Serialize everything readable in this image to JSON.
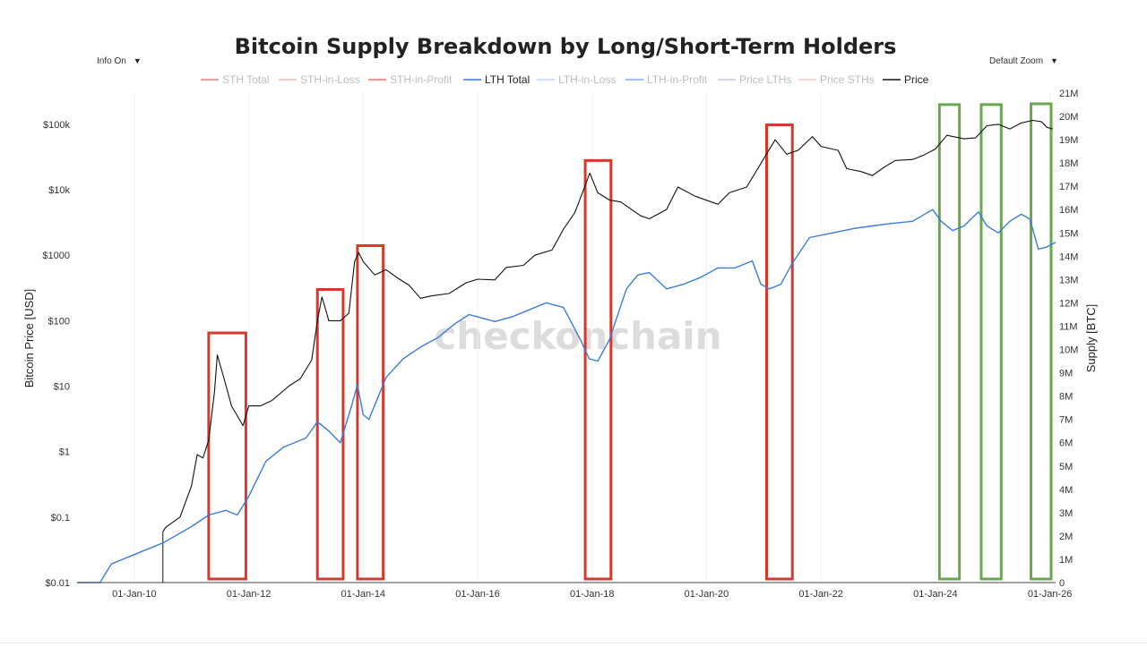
{
  "controls": {
    "info_label": "Info On",
    "zoom_label": "Default Zoom",
    "dropdown_arrow": "▼"
  },
  "watermark": "checkonchain",
  "colors": {
    "price": "#111111",
    "lth_total": "#3b7dd8",
    "red_box": "#d6392c",
    "green_box": "#6aa84f",
    "sth_total": "#e8a0a0",
    "sth_in_loss": "#f4cccc",
    "sth_in_profit": "#ea9999",
    "lth_in_loss": "#cfe0fb",
    "lth_in_profit": "#a4c2f4",
    "price_lths": "#d9d2e9",
    "price_sths": "#f4d7d7",
    "watermark": "#dcdcdc"
  },
  "chart_data": {
    "type": "line",
    "title": "Bitcoin Supply Breakdown by Long/Short-Term Holders",
    "xlabel": "",
    "ylabel_left": "Bitcoin Price [USD]",
    "ylabel_right": "Supply [BTC]",
    "left_axis_scale": "log",
    "ylim_left": [
      0.01,
      300000
    ],
    "ylim_right": [
      0,
      21000000
    ],
    "xlim": [
      2009.0,
      2026.1
    ],
    "x_ticks": [
      {
        "value": 2010,
        "label": "01-Jan-10"
      },
      {
        "value": 2012,
        "label": "01-Jan-12"
      },
      {
        "value": 2014,
        "label": "01-Jan-14"
      },
      {
        "value": 2016,
        "label": "01-Jan-16"
      },
      {
        "value": 2018,
        "label": "01-Jan-18"
      },
      {
        "value": 2020,
        "label": "01-Jan-20"
      },
      {
        "value": 2022,
        "label": "01-Jan-22"
      },
      {
        "value": 2024,
        "label": "01-Jan-24"
      },
      {
        "value": 2026,
        "label": "01-Jan-26"
      }
    ],
    "y_ticks_left": [
      {
        "value": 0.01,
        "label": "$0.01"
      },
      {
        "value": 0.1,
        "label": "$0.1"
      },
      {
        "value": 1,
        "label": "$1"
      },
      {
        "value": 10,
        "label": "$10"
      },
      {
        "value": 100,
        "label": "$100"
      },
      {
        "value": 1000,
        "label": "$1000"
      },
      {
        "value": 10000,
        "label": "$10k"
      },
      {
        "value": 100000,
        "label": "$100k"
      }
    ],
    "y_ticks_right": [
      {
        "value": 0,
        "label": "0"
      },
      {
        "value": 1000000,
        "label": "1M"
      },
      {
        "value": 2000000,
        "label": "2M"
      },
      {
        "value": 3000000,
        "label": "3M"
      },
      {
        "value": 4000000,
        "label": "4M"
      },
      {
        "value": 5000000,
        "label": "5M"
      },
      {
        "value": 6000000,
        "label": "6M"
      },
      {
        "value": 7000000,
        "label": "7M"
      },
      {
        "value": 8000000,
        "label": "8M"
      },
      {
        "value": 9000000,
        "label": "9M"
      },
      {
        "value": 10000000,
        "label": "10M"
      },
      {
        "value": 11000000,
        "label": "11M"
      },
      {
        "value": 12000000,
        "label": "12M"
      },
      {
        "value": 13000000,
        "label": "13M"
      },
      {
        "value": 14000000,
        "label": "14M"
      },
      {
        "value": 15000000,
        "label": "15M"
      },
      {
        "value": 16000000,
        "label": "16M"
      },
      {
        "value": 17000000,
        "label": "17M"
      },
      {
        "value": 18000000,
        "label": "18M"
      },
      {
        "value": 19000000,
        "label": "19M"
      },
      {
        "value": 20000000,
        "label": "20M"
      },
      {
        "value": 21000000,
        "label": "21M"
      }
    ],
    "legend": [
      {
        "name": "STH Total",
        "color_key": "sth_total",
        "active": false
      },
      {
        "name": "STH-in-Loss",
        "color_key": "sth_in_loss",
        "active": false
      },
      {
        "name": "STH-in-Profit",
        "color_key": "sth_in_profit",
        "active": false
      },
      {
        "name": "LTH Total",
        "color_key": "lth_total",
        "active": true
      },
      {
        "name": "LTH-in-Loss",
        "color_key": "lth_in_loss",
        "active": false
      },
      {
        "name": "LTH-in-Profit",
        "color_key": "lth_in_profit",
        "active": false
      },
      {
        "name": "Price LTHs",
        "color_key": "price_lths",
        "active": false
      },
      {
        "name": "Price STHs",
        "color_key": "price_sths",
        "active": false
      },
      {
        "name": "Price",
        "color_key": "price",
        "active": true
      }
    ],
    "series": [
      {
        "name": "Price",
        "axis": "left",
        "color_key": "price",
        "points": [
          [
            2010.5,
            0.06
          ],
          [
            2010.55,
            0.07
          ],
          [
            2010.8,
            0.1
          ],
          [
            2011.0,
            0.3
          ],
          [
            2011.1,
            0.9
          ],
          [
            2011.2,
            0.8
          ],
          [
            2011.3,
            1.5
          ],
          [
            2011.4,
            8
          ],
          [
            2011.45,
            30
          ],
          [
            2011.55,
            15
          ],
          [
            2011.7,
            5
          ],
          [
            2011.9,
            2.5
          ],
          [
            2012.0,
            5
          ],
          [
            2012.2,
            5
          ],
          [
            2012.4,
            6
          ],
          [
            2012.7,
            10
          ],
          [
            2012.9,
            13
          ],
          [
            2013.1,
            25
          ],
          [
            2013.2,
            100
          ],
          [
            2013.28,
            230
          ],
          [
            2013.4,
            100
          ],
          [
            2013.6,
            100
          ],
          [
            2013.75,
            130
          ],
          [
            2013.85,
            800
          ],
          [
            2013.92,
            1100
          ],
          [
            2014.0,
            800
          ],
          [
            2014.2,
            500
          ],
          [
            2014.4,
            600
          ],
          [
            2014.6,
            450
          ],
          [
            2014.8,
            350
          ],
          [
            2015.0,
            220
          ],
          [
            2015.2,
            240
          ],
          [
            2015.5,
            260
          ],
          [
            2015.8,
            380
          ],
          [
            2016.0,
            430
          ],
          [
            2016.3,
            420
          ],
          [
            2016.5,
            650
          ],
          [
            2016.8,
            700
          ],
          [
            2017.0,
            1000
          ],
          [
            2017.3,
            1200
          ],
          [
            2017.5,
            2500
          ],
          [
            2017.7,
            4500
          ],
          [
            2017.85,
            10000
          ],
          [
            2017.96,
            18000
          ],
          [
            2018.1,
            9000
          ],
          [
            2018.3,
            7000
          ],
          [
            2018.5,
            6500
          ],
          [
            2018.85,
            4000
          ],
          [
            2019.0,
            3600
          ],
          [
            2019.3,
            5000
          ],
          [
            2019.5,
            11000
          ],
          [
            2019.8,
            8000
          ],
          [
            2020.2,
            6000
          ],
          [
            2020.4,
            9000
          ],
          [
            2020.7,
            11000
          ],
          [
            2020.85,
            18000
          ],
          [
            2021.0,
            30000
          ],
          [
            2021.2,
            58000
          ],
          [
            2021.4,
            35000
          ],
          [
            2021.6,
            40000
          ],
          [
            2021.85,
            65000
          ],
          [
            2022.0,
            46000
          ],
          [
            2022.3,
            40000
          ],
          [
            2022.45,
            21000
          ],
          [
            2022.7,
            19000
          ],
          [
            2022.9,
            16500
          ],
          [
            2023.1,
            22000
          ],
          [
            2023.3,
            28000
          ],
          [
            2023.6,
            29000
          ],
          [
            2023.8,
            34000
          ],
          [
            2024.0,
            42000
          ],
          [
            2024.2,
            68000
          ],
          [
            2024.5,
            60000
          ],
          [
            2024.7,
            62000
          ],
          [
            2024.9,
            95000
          ],
          [
            2025.1,
            100000
          ],
          [
            2025.3,
            85000
          ],
          [
            2025.5,
            105000
          ],
          [
            2025.7,
            115000
          ],
          [
            2025.85,
            110000
          ],
          [
            2025.95,
            90000
          ],
          [
            2026.05,
            85000
          ]
        ]
      },
      {
        "name": "LTH Total",
        "axis": "right",
        "color_key": "lth_total",
        "points": [
          [
            2009.0,
            0
          ],
          [
            2009.4,
            0
          ],
          [
            2009.6,
            800000
          ],
          [
            2010.0,
            1200000
          ],
          [
            2010.5,
            1700000
          ],
          [
            2011.0,
            2400000
          ],
          [
            2011.3,
            2900000
          ],
          [
            2011.6,
            3100000
          ],
          [
            2011.8,
            2900000
          ],
          [
            2012.0,
            3700000
          ],
          [
            2012.3,
            5200000
          ],
          [
            2012.6,
            5800000
          ],
          [
            2013.0,
            6200000
          ],
          [
            2013.2,
            6900000
          ],
          [
            2013.4,
            6500000
          ],
          [
            2013.6,
            6000000
          ],
          [
            2013.8,
            7600000
          ],
          [
            2013.9,
            8500000
          ],
          [
            2014.0,
            7200000
          ],
          [
            2014.1,
            7000000
          ],
          [
            2014.4,
            8800000
          ],
          [
            2014.7,
            9600000
          ],
          [
            2015.0,
            10100000
          ],
          [
            2015.3,
            10500000
          ],
          [
            2015.6,
            11100000
          ],
          [
            2015.85,
            11500000
          ],
          [
            2016.0,
            11400000
          ],
          [
            2016.3,
            11200000
          ],
          [
            2016.6,
            11400000
          ],
          [
            2016.9,
            11700000
          ],
          [
            2017.2,
            12000000
          ],
          [
            2017.5,
            11800000
          ],
          [
            2017.8,
            10400000
          ],
          [
            2017.95,
            9600000
          ],
          [
            2018.1,
            9500000
          ],
          [
            2018.3,
            10400000
          ],
          [
            2018.6,
            12600000
          ],
          [
            2018.8,
            13200000
          ],
          [
            2019.0,
            13300000
          ],
          [
            2019.3,
            12600000
          ],
          [
            2019.6,
            12800000
          ],
          [
            2019.9,
            13100000
          ],
          [
            2020.2,
            13500000
          ],
          [
            2020.5,
            13500000
          ],
          [
            2020.8,
            13800000
          ],
          [
            2020.95,
            12800000
          ],
          [
            2021.1,
            12600000
          ],
          [
            2021.3,
            12800000
          ],
          [
            2021.5,
            13700000
          ],
          [
            2021.8,
            14800000
          ],
          [
            2022.2,
            15000000
          ],
          [
            2022.6,
            15200000
          ],
          [
            2022.9,
            15300000
          ],
          [
            2023.2,
            15400000
          ],
          [
            2023.6,
            15500000
          ],
          [
            2023.95,
            16000000
          ],
          [
            2024.1,
            15500000
          ],
          [
            2024.3,
            15100000
          ],
          [
            2024.5,
            15300000
          ],
          [
            2024.75,
            15900000
          ],
          [
            2024.9,
            15300000
          ],
          [
            2025.1,
            15000000
          ],
          [
            2025.3,
            15500000
          ],
          [
            2025.5,
            15800000
          ],
          [
            2025.65,
            15600000
          ],
          [
            2025.8,
            14300000
          ],
          [
            2025.95,
            14400000
          ],
          [
            2026.1,
            14600000
          ]
        ]
      }
    ],
    "highlight_boxes": [
      {
        "color_key": "red_box",
        "x_start": 2011.3,
        "x_end": 2011.95,
        "y_top": 65
      },
      {
        "color_key": "red_box",
        "x_start": 2013.2,
        "x_end": 2013.65,
        "y_top": 300
      },
      {
        "color_key": "red_box",
        "x_start": 2013.9,
        "x_end": 2014.35,
        "y_top": 1400
      },
      {
        "color_key": "red_box",
        "x_start": 2017.88,
        "x_end": 2018.33,
        "y_top": 28000
      },
      {
        "color_key": "red_box",
        "x_start": 2021.05,
        "x_end": 2021.5,
        "y_top": 98000
      },
      {
        "color_key": "green_box",
        "x_start": 2024.07,
        "x_end": 2024.42,
        "y_top": 200000
      },
      {
        "color_key": "green_box",
        "x_start": 2024.8,
        "x_end": 2025.15,
        "y_top": 200000
      },
      {
        "color_key": "green_box",
        "x_start": 2025.67,
        "x_end": 2026.25,
        "y_top": 210000
      }
    ]
  }
}
